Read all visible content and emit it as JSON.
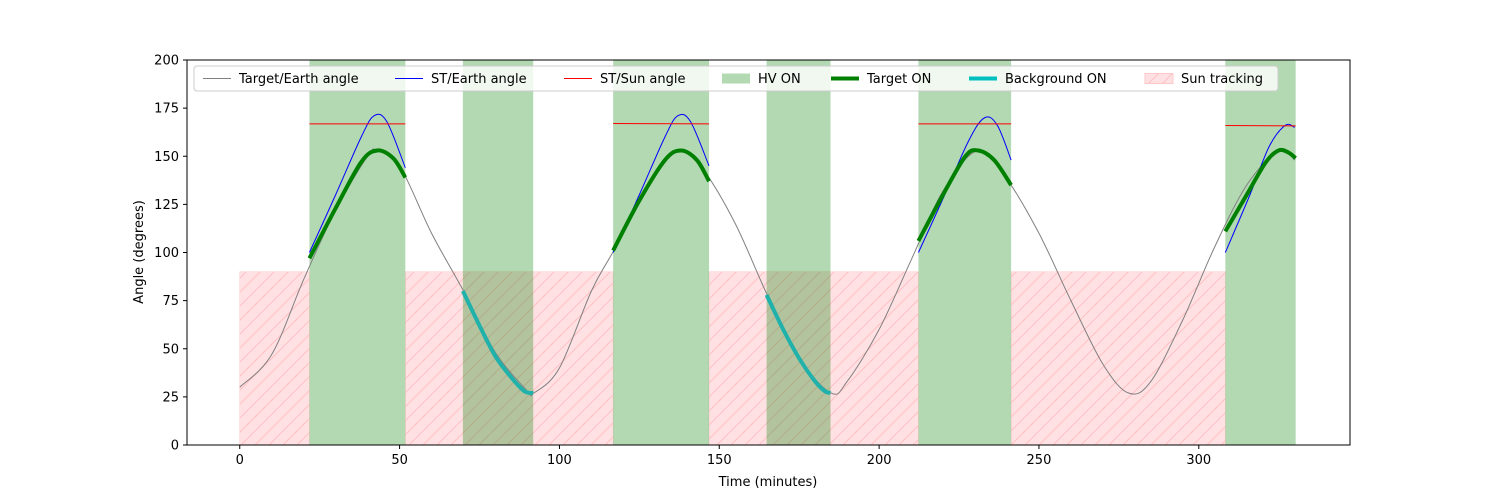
{
  "chart_data": {
    "type": "line",
    "xlabel": "Time (minutes)",
    "ylabel": "Angle (degrees)",
    "xlim": [
      -16.5,
      347.3
    ],
    "ylim": [
      0,
      200
    ],
    "xticks": [
      0,
      50,
      100,
      150,
      200,
      250,
      300
    ],
    "yticks": [
      0,
      25,
      50,
      75,
      100,
      125,
      150,
      175,
      200
    ],
    "grid": false,
    "legend_position": "top",
    "legend": [
      {
        "label": "Target/Earth angle",
        "kind": "line",
        "color": "#808080"
      },
      {
        "label": "ST/Earth angle",
        "kind": "line",
        "color": "#0000ff"
      },
      {
        "label": "ST/Sun angle",
        "kind": "line",
        "color": "#ff0000"
      },
      {
        "label": "HV ON",
        "kind": "patch",
        "color": "#008000"
      },
      {
        "label": "Target ON",
        "kind": "thickline",
        "color": "#008000"
      },
      {
        "label": "Background ON",
        "kind": "thickline",
        "color": "#00bfbf"
      },
      {
        "label": "Sun tracking",
        "kind": "hatch",
        "color": "#ff9999"
      }
    ],
    "hv_on_intervals": [
      [
        21.8,
        51.8
      ],
      [
        69.8,
        91.8
      ],
      [
        116.8,
        146.8
      ],
      [
        164.8,
        184.8
      ],
      [
        212.3,
        241.3
      ],
      [
        308.3,
        330.3
      ]
    ],
    "sun_tracking_intervals": [
      [
        0,
        21.8
      ],
      [
        51.8,
        116.8
      ],
      [
        146.8,
        212.3
      ],
      [
        241.3,
        308.3
      ]
    ],
    "sun_tracking_level": 90,
    "series": [
      {
        "name": "Target/Earth angle",
        "color": "#808080",
        "width": 1,
        "points": [
          [
            0,
            30
          ],
          [
            10,
            47
          ],
          [
            20,
            86
          ],
          [
            30,
            122
          ],
          [
            40,
            150
          ],
          [
            43,
            153
          ],
          [
            50,
            145
          ],
          [
            60,
            110
          ],
          [
            70,
            80
          ],
          [
            80,
            48
          ],
          [
            90,
            28
          ],
          [
            92,
            27
          ],
          [
            100,
            40
          ],
          [
            110,
            80
          ],
          [
            117,
            101
          ],
          [
            130,
            140
          ],
          [
            138,
            153
          ],
          [
            145,
            143
          ],
          [
            155,
            115
          ],
          [
            165,
            78
          ],
          [
            175,
            45
          ],
          [
            185,
            27
          ],
          [
            190,
            33
          ],
          [
            200,
            60
          ],
          [
            210,
            96
          ],
          [
            220,
            132
          ],
          [
            231,
            153
          ],
          [
            240,
            138
          ],
          [
            250,
            110
          ],
          [
            260,
            75
          ],
          [
            270,
            42
          ],
          [
            278,
            27
          ],
          [
            285,
            33
          ],
          [
            295,
            65
          ],
          [
            305,
            103
          ],
          [
            315,
            135
          ],
          [
            325,
            153
          ],
          [
            330,
            148
          ]
        ]
      },
      {
        "name": "ST/Earth angle",
        "color": "#0000ff",
        "width": 1,
        "segments": [
          [
            [
              21.8,
              100
            ],
            [
              30,
              130
            ],
            [
              38,
              160
            ],
            [
              42,
              171
            ],
            [
              46,
              168
            ],
            [
              51.8,
              144
            ]
          ],
          [
            [
              116.8,
              100
            ],
            [
              125,
              130
            ],
            [
              133,
              160
            ],
            [
              137,
              171
            ],
            [
              141,
              168
            ],
            [
              146.8,
              145
            ]
          ],
          [
            [
              212.3,
              100
            ],
            [
              220,
              128
            ],
            [
              228,
              158
            ],
            [
              233,
              170
            ],
            [
              237,
              166
            ],
            [
              241.3,
              148
            ]
          ],
          [
            [
              308.3,
              100
            ],
            [
              316,
              130
            ],
            [
              322,
              155
            ],
            [
              327,
              166
            ],
            [
              330,
              165
            ]
          ]
        ]
      },
      {
        "name": "ST/Sun angle",
        "color": "#ff0000",
        "width": 1,
        "segments": [
          [
            [
              21.8,
              166.8
            ],
            [
              51.8,
              166.8
            ]
          ],
          [
            [
              116.8,
              167
            ],
            [
              146.8,
              166.8
            ]
          ],
          [
            [
              212.3,
              166.8
            ],
            [
              241.3,
              166.8
            ]
          ],
          [
            [
              308.3,
              166
            ],
            [
              330.3,
              165.8
            ]
          ]
        ]
      },
      {
        "name": "Target ON",
        "color": "#008000",
        "width": 4,
        "segments": [
          [
            [
              21.8,
              97
            ],
            [
              30,
              123
            ],
            [
              38,
              147
            ],
            [
              43,
              153
            ],
            [
              48,
              149
            ],
            [
              51.8,
              139
            ]
          ],
          [
            [
              116.8,
              101
            ],
            [
              125,
              127
            ],
            [
              133,
              148
            ],
            [
              138,
              153
            ],
            [
              143,
              148
            ],
            [
              146.8,
              137
            ]
          ],
          [
            [
              212.3,
              106
            ],
            [
              220,
              130
            ],
            [
              227,
              150
            ],
            [
              231,
              153
            ],
            [
              236,
              148
            ],
            [
              241.3,
              135
            ]
          ],
          [
            [
              308.3,
              111
            ],
            [
              315,
              130
            ],
            [
              321,
              147
            ],
            [
              325,
              153
            ],
            [
              328,
              152
            ],
            [
              330.3,
              149
            ]
          ]
        ]
      },
      {
        "name": "Background ON",
        "color": "#20b2aa",
        "width": 4,
        "segments": [
          [
            [
              69.8,
              80
            ],
            [
              75,
              62
            ],
            [
              80,
              46
            ],
            [
              85,
              35
            ],
            [
              89,
              28
            ],
            [
              91.8,
              27
            ]
          ],
          [
            [
              164.8,
              78
            ],
            [
              170,
              60
            ],
            [
              175,
              45
            ],
            [
              180,
              33
            ],
            [
              183,
              28
            ],
            [
              184.8,
              27
            ]
          ]
        ]
      }
    ]
  }
}
